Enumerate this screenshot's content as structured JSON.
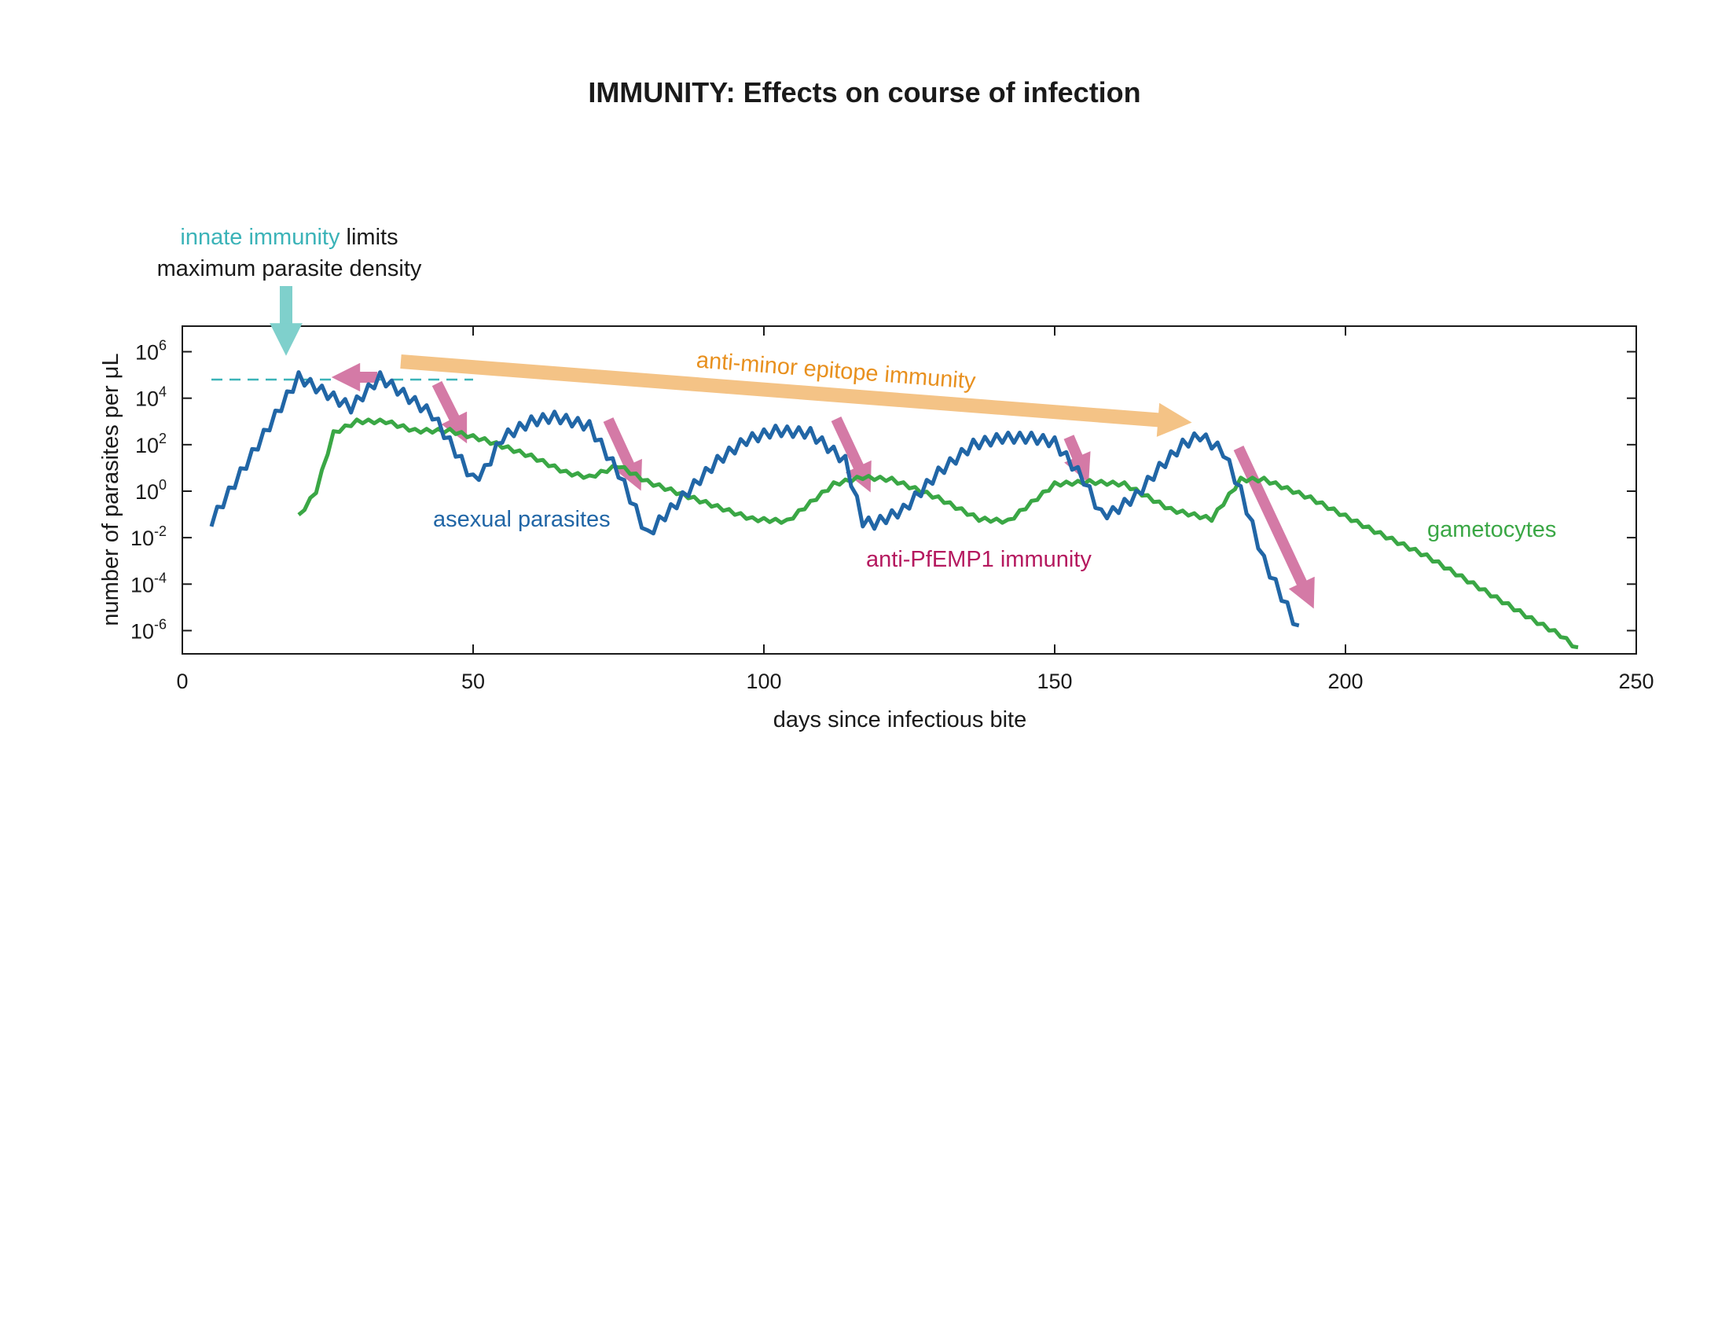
{
  "chart_data": {
    "type": "line",
    "title": "IMMUNITY: Effects on course of infection",
    "xlabel": "days since infectious bite",
    "ylabel": "number of parasites per μL",
    "xlim": [
      0,
      250
    ],
    "ylim_log10": [
      -7,
      7.1
    ],
    "y_scale": "log",
    "grid": false,
    "x_ticks": [
      {
        "value": 0,
        "label": "0"
      },
      {
        "value": 50,
        "label": "50"
      },
      {
        "value": 100,
        "label": "100"
      },
      {
        "value": 150,
        "label": "150"
      },
      {
        "value": 200,
        "label": "200"
      },
      {
        "value": 250,
        "label": "250"
      }
    ],
    "y_ticks": [
      {
        "exp": 6,
        "base": "10",
        "sup": "6"
      },
      {
        "exp": 4,
        "base": "10",
        "sup": "4"
      },
      {
        "exp": 2,
        "base": "10",
        "sup": "2"
      },
      {
        "exp": 0,
        "base": "10",
        "sup": "0"
      },
      {
        "exp": -2,
        "base": "10",
        "sup": "-2"
      },
      {
        "exp": -4,
        "base": "10",
        "sup": "-4"
      },
      {
        "exp": -6,
        "base": "10",
        "sup": "-6"
      }
    ],
    "series": [
      {
        "name": "asexual parasites",
        "color": "#2166a6",
        "points": [
          [
            5,
            -1.3
          ],
          [
            20,
            4.9
          ],
          [
            29,
            3.6
          ],
          [
            34,
            4.9
          ],
          [
            43,
            3.3
          ],
          [
            50,
            0.5
          ],
          [
            52,
            0.9
          ],
          [
            55,
            2.3
          ],
          [
            60,
            3.0
          ],
          [
            64,
            3.2
          ],
          [
            70,
            2.8
          ],
          [
            75,
            0.8
          ],
          [
            80,
            -1.9
          ],
          [
            82,
            -1.3
          ],
          [
            87,
            0.0
          ],
          [
            92,
            1.3
          ],
          [
            97,
            2.2
          ],
          [
            102,
            2.6
          ],
          [
            108,
            2.5
          ],
          [
            114,
            1.3
          ],
          [
            117,
            -1.3
          ],
          [
            119,
            -1.4
          ],
          [
            124,
            -0.8
          ],
          [
            130,
            0.8
          ],
          [
            136,
            2.0
          ],
          [
            141,
            2.3
          ],
          [
            146,
            2.3
          ],
          [
            150,
            2.1
          ],
          [
            155,
            0.5
          ],
          [
            158,
            -1.0
          ],
          [
            160,
            -0.9
          ],
          [
            164,
            -0.2
          ],
          [
            168,
            1.0
          ],
          [
            172,
            2.0
          ],
          [
            175,
            2.4
          ],
          [
            179,
            1.7
          ],
          [
            182,
            0.0
          ],
          [
            186,
            -3.0
          ],
          [
            190,
            -5.0
          ],
          [
            192,
            -6.0
          ]
        ]
      },
      {
        "name": "gametocytes",
        "color": "#3aa745",
        "points": [
          [
            20,
            -1.1
          ],
          [
            23,
            0.0
          ],
          [
            26,
            2.5
          ],
          [
            30,
            3.0
          ],
          [
            35,
            3.0
          ],
          [
            40,
            2.6
          ],
          [
            46,
            2.6
          ],
          [
            52,
            2.2
          ],
          [
            60,
            1.5
          ],
          [
            66,
            0.8
          ],
          [
            70,
            0.6
          ],
          [
            75,
            1.1
          ],
          [
            80,
            0.4
          ],
          [
            90,
            -0.5
          ],
          [
            98,
            -1.2
          ],
          [
            104,
            -1.3
          ],
          [
            112,
            0.3
          ],
          [
            117,
            0.6
          ],
          [
            122,
            0.5
          ],
          [
            130,
            -0.3
          ],
          [
            137,
            -1.2
          ],
          [
            142,
            -1.3
          ],
          [
            150,
            0.3
          ],
          [
            156,
            0.4
          ],
          [
            162,
            0.3
          ],
          [
            170,
            -0.8
          ],
          [
            177,
            -1.2
          ],
          [
            182,
            0.5
          ],
          [
            186,
            0.5
          ],
          [
            194,
            -0.3
          ],
          [
            204,
            -1.6
          ],
          [
            214,
            -2.8
          ],
          [
            222,
            -4.0
          ],
          [
            232,
            -5.5
          ],
          [
            237,
            -6.2
          ],
          [
            240,
            -6.8
          ]
        ]
      }
    ],
    "threshold": {
      "value_log10": 4.8,
      "x_range": [
        5,
        50
      ],
      "color": "#3bb3b8"
    },
    "annotations": {
      "innate_part1": "innate immunity",
      "innate_part2": " limits",
      "innate_line2": "maximum parasite density",
      "innate_color": "#3bb3b8",
      "minor_epitope": "anti-minor epitope immunity",
      "minor_color": "#e8901e",
      "asexual_label": "asexual parasites",
      "asexual_color": "#2166a6",
      "pfemp1": "anti-PfEMP1 immunity",
      "pfemp1_color": "#b5195f",
      "gametocytes_label": "gametocytes",
      "gametocytes_color": "#3aa745"
    }
  }
}
